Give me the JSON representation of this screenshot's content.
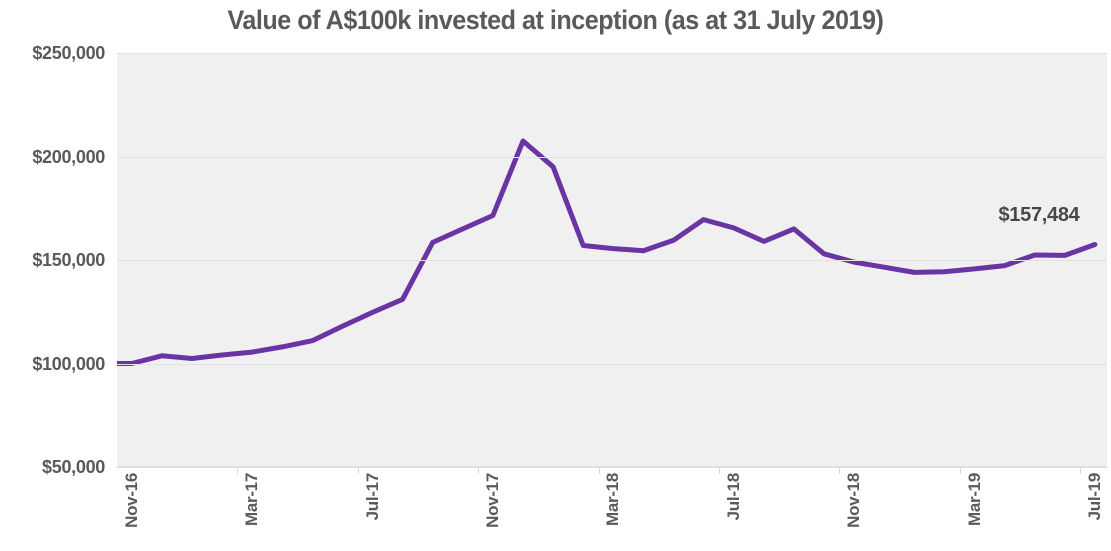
{
  "title": "Value of A$100k invested at inception (as at 31 July 2019)",
  "annotation": {
    "text": "$157,484"
  },
  "colors": {
    "line": "#6a35a3",
    "plot_background": "#f0f0f1",
    "gridline": "#e2e2e3",
    "plot_bottom_border": "#d9d9da",
    "tick": "#d9d9da",
    "axis_text": "#595a5c",
    "title_text": "#595a5c",
    "annotation_text": "#48484a"
  },
  "y_axis": {
    "labels": [
      "$250,000",
      "$200,000",
      "$150,000",
      "$100,000",
      "$50,000"
    ],
    "max": 250000,
    "min": 50000
  },
  "x_axis": {
    "labels": [
      "Nov-16",
      "Mar-17",
      "Jul-17",
      "Nov-17",
      "Mar-18",
      "Jul-18",
      "Nov-18",
      "Mar-19",
      "Jul-19"
    ]
  },
  "chart_data": {
    "type": "line",
    "title": "Value of A$100k invested at inception (as at 31 July 2019)",
    "xlabel": "",
    "ylabel": "",
    "ylim": [
      50000,
      250000
    ],
    "y_ticks": [
      50000,
      100000,
      150000,
      200000,
      250000
    ],
    "grid": true,
    "legend": false,
    "x": [
      "Oct-16",
      "Nov-16",
      "Dec-16",
      "Jan-17",
      "Feb-17",
      "Mar-17",
      "Apr-17",
      "May-17",
      "Jun-17",
      "Jul-17",
      "Aug-17",
      "Sep-17",
      "Oct-17",
      "Nov-17",
      "Dec-17",
      "Jan-18",
      "Feb-18",
      "Mar-18",
      "Apr-18",
      "May-18",
      "Jun-18",
      "Jul-18",
      "Aug-18",
      "Sep-18",
      "Oct-18",
      "Nov-18",
      "Dec-18",
      "Jan-19",
      "Feb-19",
      "Mar-19",
      "Apr-19",
      "May-19",
      "Jun-19",
      "Jul-19"
    ],
    "x_tick_labels": [
      "Nov-16",
      "Mar-17",
      "Jul-17",
      "Nov-17",
      "Mar-18",
      "Jul-18",
      "Nov-18",
      "Mar-19",
      "Jul-19"
    ],
    "series": [
      {
        "name": "Value of A$100k invested at inception",
        "values": [
          100000,
          100000,
          103700,
          102400,
          104100,
          105500,
          108000,
          111000,
          118000,
          124700,
          131000,
          158500,
          165000,
          171500,
          207500,
          195000,
          157000,
          155500,
          154500,
          159500,
          169500,
          165500,
          159000,
          165000,
          153000,
          149000,
          146500,
          144000,
          144300,
          145700,
          147300,
          152400,
          152200,
          157484
        ]
      }
    ],
    "annotation": {
      "x": "Jul-19",
      "value": 157484,
      "text": "$157,484"
    }
  }
}
